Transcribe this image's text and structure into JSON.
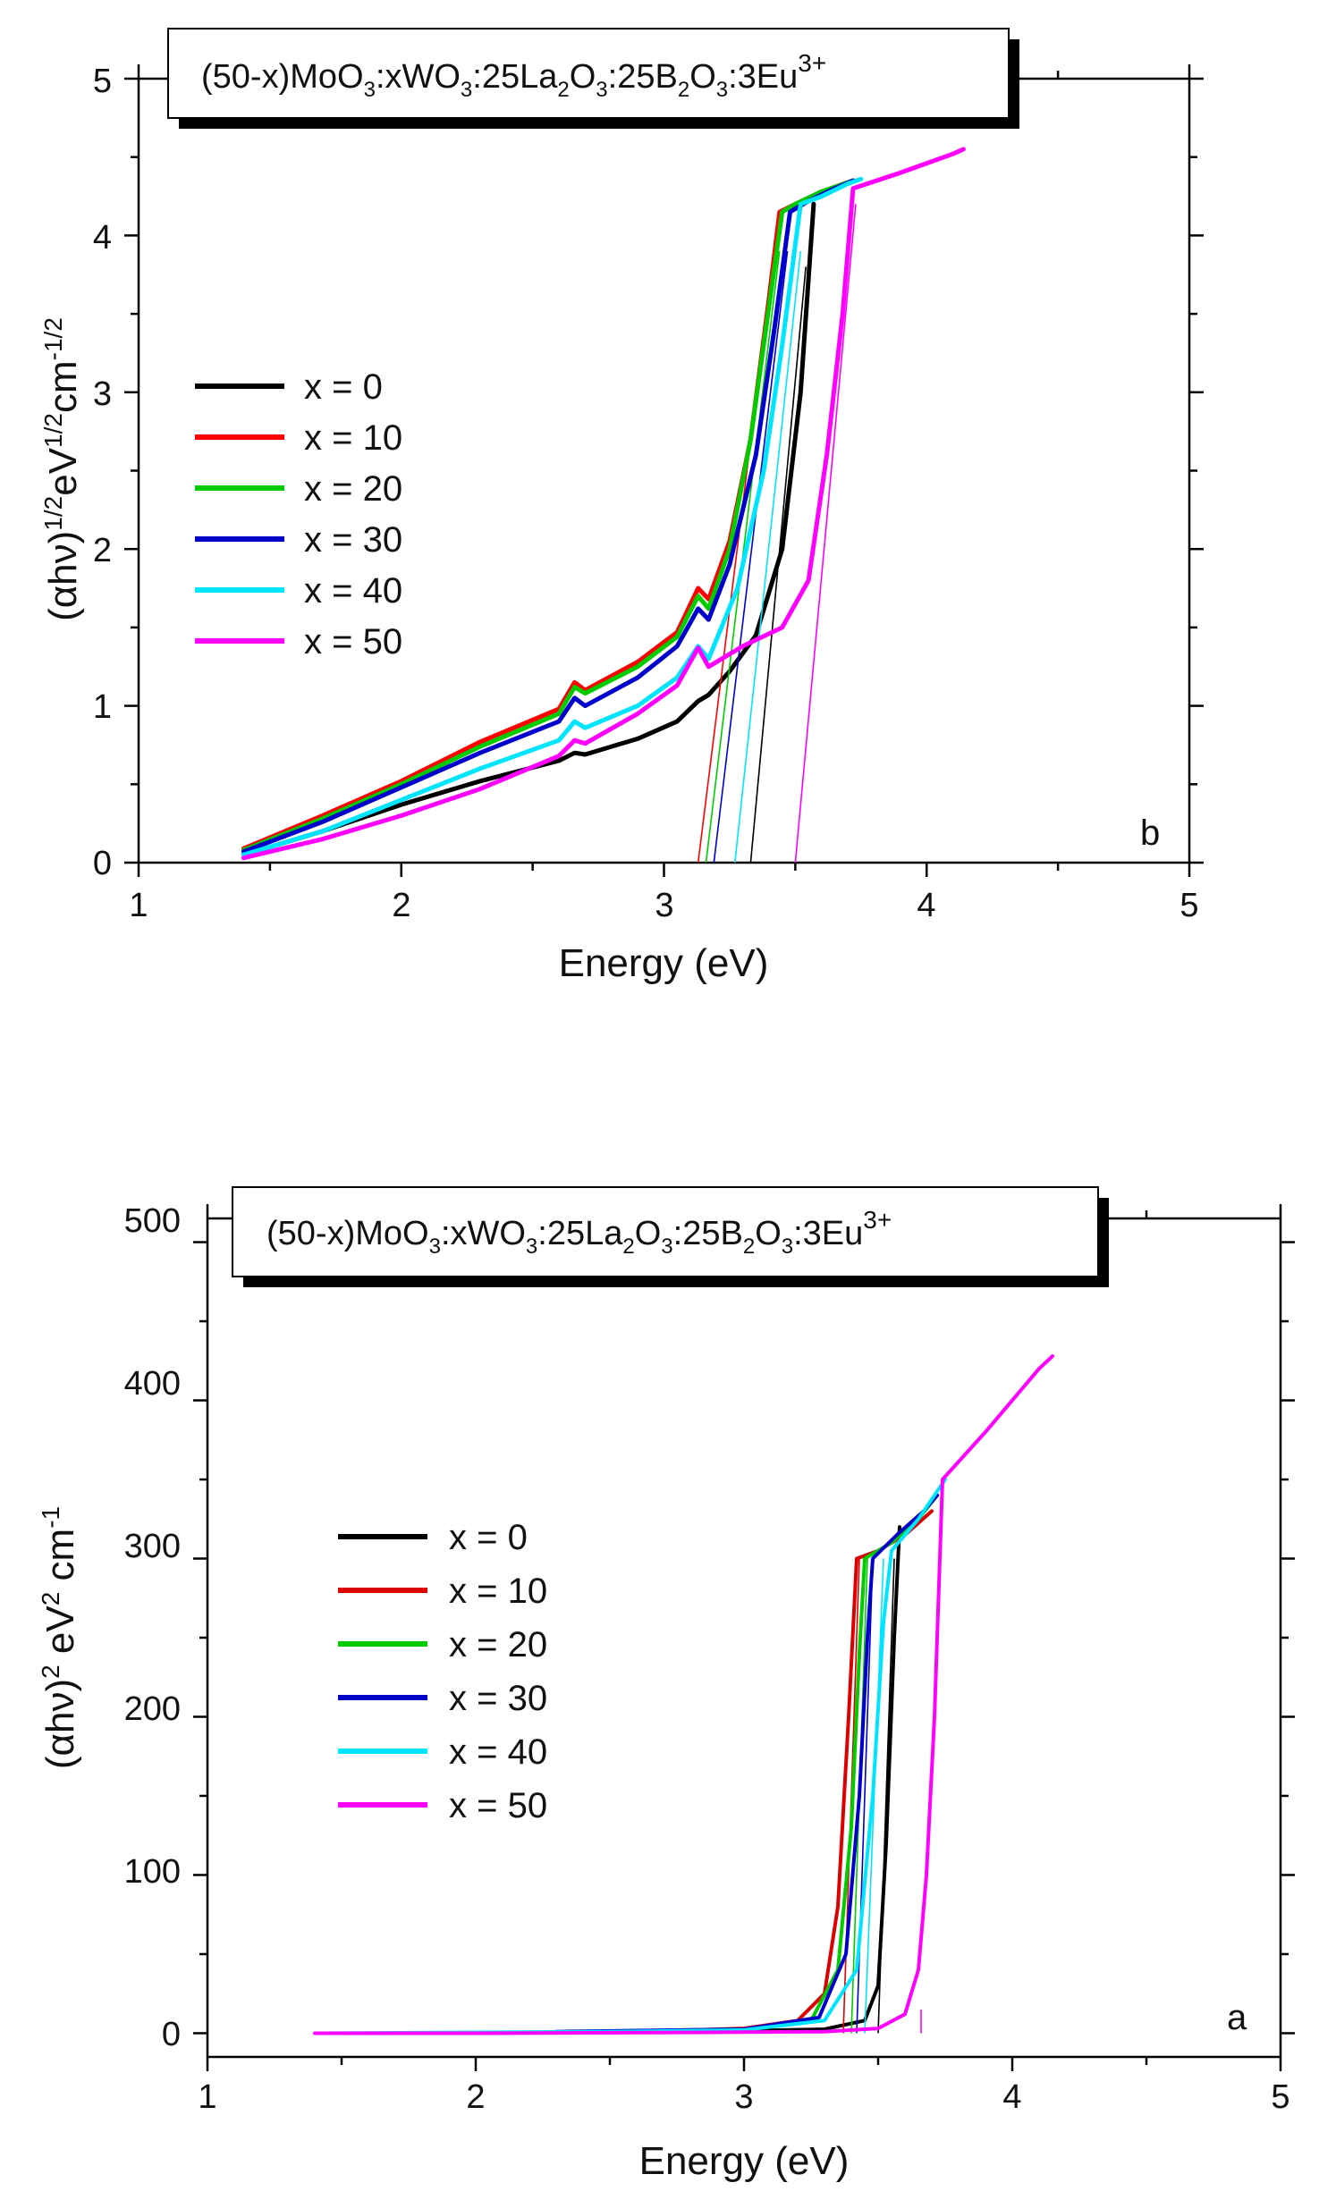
{
  "chart_data": [
    {
      "id": "b",
      "type": "line",
      "title": "(50-x)MoO3:xWO3:25La2O3:25B2O3:3Eu3+",
      "title_parts": {
        "t1": "(50-x)MoO",
        "s1": "3",
        "t2": ":xWO",
        "s2": "3",
        "t3": ":25La",
        "s3": "2",
        "t4": "O",
        "s4": "3",
        "t5": ":25B",
        "s5": "2",
        "t6": "O",
        "s6": "3",
        "t7": ":3Eu",
        "sup": "3+"
      },
      "panel_label": "b",
      "xlabel": "Energy (eV)",
      "ylabel": "(αhν)1/2eV1/2cm-1/2",
      "ylabel_parts": {
        "a": "(αhν)",
        "p1": "1/2",
        "b": "eV",
        "p2": "1/2",
        "c": "cm",
        "p3": "-1/2"
      },
      "xlim": [
        1,
        5
      ],
      "ylim": [
        0,
        5
      ],
      "xticks": [
        "1",
        "2",
        "3",
        "4",
        "5"
      ],
      "yticks": [
        "0",
        "1",
        "2",
        "3",
        "4",
        "5"
      ],
      "series": [
        {
          "name": "x = 0",
          "color": "#000000",
          "points": [
            [
              1.42,
              0.06
            ],
            [
              1.7,
              0.2
            ],
            [
              2.0,
              0.37
            ],
            [
              2.3,
              0.52
            ],
            [
              2.6,
              0.65
            ],
            [
              2.66,
              0.7
            ],
            [
              2.7,
              0.69
            ],
            [
              2.9,
              0.79
            ],
            [
              3.05,
              0.9
            ],
            [
              3.13,
              1.03
            ],
            [
              3.17,
              1.07
            ],
            [
              3.25,
              1.22
            ],
            [
              3.35,
              1.45
            ],
            [
              3.45,
              2.0
            ],
            [
              3.52,
              3.0
            ],
            [
              3.57,
              4.2
            ]
          ],
          "tangent": [
            [
              3.33,
              0
            ],
            [
              3.54,
              3.8
            ]
          ]
        },
        {
          "name": "x = 10",
          "color": "#ff0000",
          "points": [
            [
              1.4,
              0.09
            ],
            [
              1.7,
              0.3
            ],
            [
              2.0,
              0.52
            ],
            [
              2.3,
              0.77
            ],
            [
              2.6,
              0.98
            ],
            [
              2.66,
              1.15
            ],
            [
              2.7,
              1.1
            ],
            [
              2.9,
              1.28
            ],
            [
              3.05,
              1.47
            ],
            [
              3.13,
              1.75
            ],
            [
              3.17,
              1.68
            ],
            [
              3.25,
              2.05
            ],
            [
              3.33,
              2.7
            ],
            [
              3.4,
              3.6
            ],
            [
              3.44,
              4.15
            ],
            [
              3.5,
              4.2
            ],
            [
              3.6,
              4.28
            ],
            [
              3.72,
              4.35
            ]
          ],
          "tangent": [
            [
              3.13,
              0
            ],
            [
              3.42,
              3.9
            ]
          ]
        },
        {
          "name": "x = 20",
          "color": "#00cc00",
          "points": [
            [
              1.4,
              0.08
            ],
            [
              1.7,
              0.28
            ],
            [
              2.0,
              0.5
            ],
            [
              2.3,
              0.74
            ],
            [
              2.6,
              0.95
            ],
            [
              2.66,
              1.12
            ],
            [
              2.7,
              1.08
            ],
            [
              2.9,
              1.25
            ],
            [
              3.05,
              1.44
            ],
            [
              3.13,
              1.7
            ],
            [
              3.17,
              1.62
            ],
            [
              3.25,
              2.0
            ],
            [
              3.33,
              2.7
            ],
            [
              3.4,
              3.55
            ],
            [
              3.45,
              4.15
            ],
            [
              3.5,
              4.2
            ],
            [
              3.6,
              4.28
            ],
            [
              3.72,
              4.35
            ]
          ],
          "tangent": [
            [
              3.16,
              0
            ],
            [
              3.44,
              3.9
            ]
          ]
        },
        {
          "name": "x = 30",
          "color": "#0000cc",
          "points": [
            [
              1.4,
              0.07
            ],
            [
              1.7,
              0.26
            ],
            [
              2.0,
              0.48
            ],
            [
              2.3,
              0.7
            ],
            [
              2.6,
              0.9
            ],
            [
              2.66,
              1.05
            ],
            [
              2.7,
              1.0
            ],
            [
              2.9,
              1.18
            ],
            [
              3.05,
              1.38
            ],
            [
              3.13,
              1.62
            ],
            [
              3.17,
              1.55
            ],
            [
              3.25,
              1.9
            ],
            [
              3.35,
              2.6
            ],
            [
              3.42,
              3.4
            ],
            [
              3.48,
              4.15
            ],
            [
              3.55,
              4.22
            ],
            [
              3.65,
              4.3
            ],
            [
              3.72,
              4.35
            ]
          ],
          "tangent": [
            [
              3.19,
              0
            ],
            [
              3.47,
              3.9
            ]
          ]
        },
        {
          "name": "x = 40",
          "color": "#00e5ff",
          "points": [
            [
              1.4,
              0.05
            ],
            [
              1.7,
              0.2
            ],
            [
              2.0,
              0.4
            ],
            [
              2.3,
              0.6
            ],
            [
              2.6,
              0.78
            ],
            [
              2.66,
              0.9
            ],
            [
              2.7,
              0.86
            ],
            [
              2.9,
              1.0
            ],
            [
              3.05,
              1.18
            ],
            [
              3.13,
              1.38
            ],
            [
              3.17,
              1.3
            ],
            [
              3.28,
              1.75
            ],
            [
              3.38,
              2.5
            ],
            [
              3.45,
              3.3
            ],
            [
              3.52,
              4.2
            ],
            [
              3.6,
              4.25
            ],
            [
              3.7,
              4.33
            ],
            [
              3.75,
              4.36
            ]
          ],
          "tangent": [
            [
              3.27,
              0
            ],
            [
              3.52,
              3.9
            ]
          ]
        },
        {
          "name": "x = 50",
          "color": "#ff00ff",
          "points": [
            [
              1.4,
              0.03
            ],
            [
              1.7,
              0.15
            ],
            [
              2.0,
              0.3
            ],
            [
              2.3,
              0.47
            ],
            [
              2.6,
              0.68
            ],
            [
              2.66,
              0.78
            ],
            [
              2.7,
              0.76
            ],
            [
              2.9,
              0.95
            ],
            [
              3.05,
              1.13
            ],
            [
              3.13,
              1.37
            ],
            [
              3.17,
              1.25
            ],
            [
              3.3,
              1.38
            ],
            [
              3.45,
              1.5
            ],
            [
              3.55,
              1.8
            ],
            [
              3.62,
              2.6
            ],
            [
              3.68,
              3.5
            ],
            [
              3.72,
              4.3
            ],
            [
              3.9,
              4.4
            ],
            [
              4.1,
              4.52
            ],
            [
              4.14,
              4.55
            ]
          ],
          "tangent": [
            [
              3.5,
              0
            ],
            [
              3.73,
              4.2
            ]
          ]
        }
      ]
    },
    {
      "id": "a",
      "type": "line",
      "title": "(50-x)MoO3:xWO3:25La2O3:25B2O3:3Eu3+",
      "title_parts": {
        "t1": "(50-x)MoO",
        "s1": "3",
        "t2": ":xWO",
        "s2": "3",
        "t3": ":25La",
        "s3": "2",
        "t4": "O",
        "s4": "3",
        "t5": ":25B",
        "s5": "2",
        "t6": "O",
        "s6": "3",
        "t7": ":3Eu",
        "sup": "3+"
      },
      "panel_label": "a",
      "xlabel": "Energy (eV)",
      "ylabel": "(αhν)2 eV2 cm-1",
      "ylabel_parts": {
        "a": "(αhν)",
        "p1": "2",
        "b": " eV",
        "p2": "2",
        "c": " cm",
        "p3": "-1"
      },
      "xlim": [
        1,
        5
      ],
      "ylim": [
        -15,
        515
      ],
      "xticks": [
        "1",
        "2",
        "3",
        "4",
        "5"
      ],
      "yticks": [
        "0",
        "100",
        "200",
        "300",
        "400",
        "500"
      ],
      "series": [
        {
          "name": "x = 0",
          "color": "#000000",
          "points": [
            [
              2.5,
              0.5
            ],
            [
              3.0,
              1.5
            ],
            [
              3.3,
              2.5
            ],
            [
              3.45,
              8
            ],
            [
              3.5,
              30
            ],
            [
              3.53,
              120
            ],
            [
              3.56,
              250
            ],
            [
              3.58,
              320
            ]
          ],
          "tangent": [
            [
              3.5,
              0
            ],
            [
              3.56,
              300
            ]
          ]
        },
        {
          "name": "x = 10",
          "color": "#dd0000",
          "points": [
            [
              2.1,
              0.5
            ],
            [
              2.6,
              1
            ],
            [
              3.0,
              3
            ],
            [
              3.2,
              8
            ],
            [
              3.3,
              25
            ],
            [
              3.35,
              80
            ],
            [
              3.39,
              200
            ],
            [
              3.42,
              300
            ],
            [
              3.5,
              305
            ],
            [
              3.6,
              315
            ],
            [
              3.7,
              330
            ]
          ],
          "tangent": [
            [
              3.37,
              0
            ],
            [
              3.43,
              300
            ]
          ]
        },
        {
          "name": "x = 20",
          "color": "#00cc00",
          "points": [
            [
              2.4,
              1
            ],
            [
              3.0,
              2.5
            ],
            [
              3.25,
              8
            ],
            [
              3.35,
              40
            ],
            [
              3.4,
              130
            ],
            [
              3.43,
              240
            ],
            [
              3.45,
              300
            ],
            [
              3.55,
              310
            ],
            [
              3.65,
              325
            ],
            [
              3.72,
              340
            ]
          ],
          "tangent": [
            [
              3.4,
              0
            ],
            [
              3.46,
              300
            ]
          ]
        },
        {
          "name": "x = 30",
          "color": "#0000cc",
          "points": [
            [
              2.3,
              1
            ],
            [
              3.0,
              2.5
            ],
            [
              3.28,
              10
            ],
            [
              3.38,
              50
            ],
            [
              3.43,
              150
            ],
            [
              3.46,
              250
            ],
            [
              3.48,
              300
            ],
            [
              3.57,
              315
            ],
            [
              3.67,
              330
            ],
            [
              3.72,
              340
            ]
          ],
          "tangent": [
            [
              3.42,
              0
            ],
            [
              3.48,
              300
            ]
          ]
        },
        {
          "name": "x = 40",
          "color": "#00e5ff",
          "points": [
            [
              1.4,
              0
            ],
            [
              2.5,
              1
            ],
            [
              3.0,
              2
            ],
            [
              3.3,
              8
            ],
            [
              3.42,
              40
            ],
            [
              3.48,
              150
            ],
            [
              3.52,
              260
            ],
            [
              3.55,
              305
            ],
            [
              3.65,
              325
            ],
            [
              3.75,
              350
            ]
          ],
          "tangent": [
            [
              3.45,
              0
            ],
            [
              3.52,
              300
            ]
          ]
        },
        {
          "name": "x = 50",
          "color": "#ff00ff",
          "points": [
            [
              1.4,
              0
            ],
            [
              2.0,
              0
            ],
            [
              2.8,
              0.5
            ],
            [
              3.3,
              1
            ],
            [
              3.5,
              3
            ],
            [
              3.6,
              12
            ],
            [
              3.65,
              40
            ],
            [
              3.68,
              100
            ],
            [
              3.71,
              200
            ],
            [
              3.73,
              300
            ],
            [
              3.74,
              350
            ],
            [
              3.9,
              380
            ],
            [
              4.1,
              420
            ],
            [
              4.15,
              428
            ]
          ],
          "tangent": [
            [
              3.66,
              0
            ],
            [
              3.66,
              15
            ]
          ]
        }
      ]
    }
  ]
}
